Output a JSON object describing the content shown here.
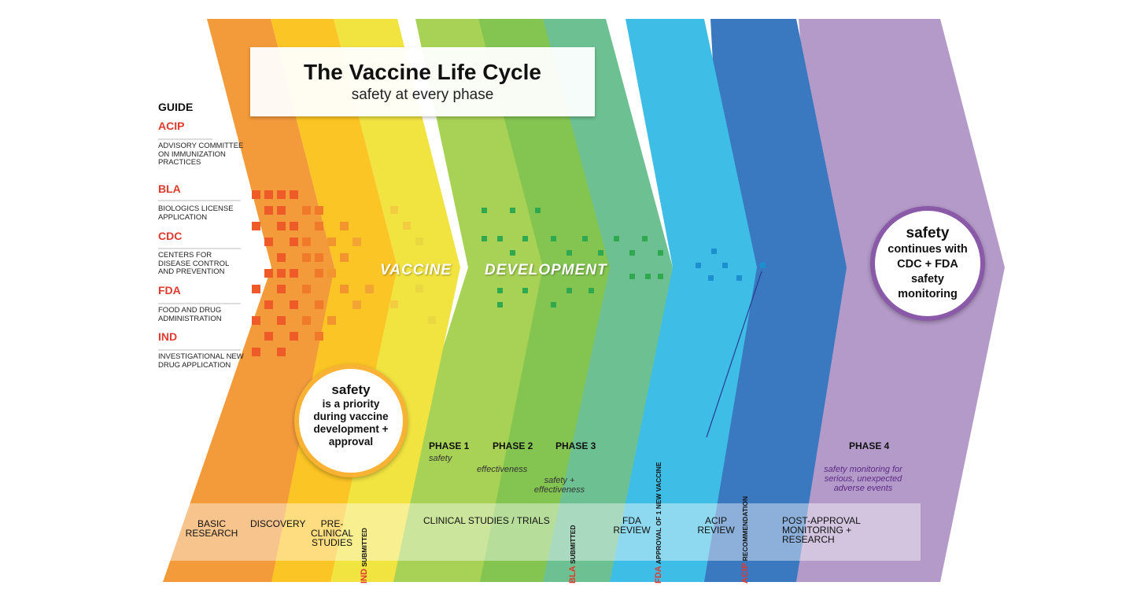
{
  "title": "The Vaccine Life Cycle",
  "subtitle": "safety at every phase",
  "guide": {
    "heading": "GUIDE",
    "items": [
      {
        "abbr": "ACIP",
        "desc": "Advisory Committee on Immunization Practices"
      },
      {
        "abbr": "BLA",
        "desc": "Biologics License Application"
      },
      {
        "abbr": "CDC",
        "desc": "Centers for Disease Control and Prevention"
      },
      {
        "abbr": "FDA",
        "desc": "Food and Drug Administration"
      },
      {
        "abbr": "IND",
        "desc": "Investigational New Drug Application"
      }
    ]
  },
  "banner": {
    "word1": "VACCINE",
    "word2": "DEVELOPMENT"
  },
  "circle_left": {
    "line1": "safety",
    "line2": "is a priority during vaccine development + approval"
  },
  "circle_right": {
    "line1": "safety",
    "line2": "continues with CDC + FDA safety monitoring"
  },
  "phases": [
    {
      "label": "PHASE 1",
      "sub": "safety"
    },
    {
      "label": "PHASE 2",
      "sub": "effectiveness"
    },
    {
      "label": "PHASE 3",
      "sub": "safety + effectiveness"
    },
    {
      "label": "PHASE 4",
      "sub": "safety monitoring for serious, unexpected adverse events"
    }
  ],
  "stages": {
    "basic_research": "BASIC RESEARCH",
    "discovery": "DISCOVERY",
    "preclinical": "PRE-CLINICAL STUDIES",
    "clinical": "CLINICAL STUDIES / TRIALS",
    "fda_review": "FDA REVIEW",
    "acip_review": "ACIP REVIEW",
    "post_approval": "POST-APPROVAL MONITORING + RESEARCH"
  },
  "milestones": {
    "ind": {
      "abbr": "IND",
      "text": "SUBMITTED"
    },
    "bla": {
      "abbr": "BLA",
      "text": "SUBMITTED"
    },
    "fda": {
      "abbr": "FDA",
      "text": "APPROVAL OF 1 NEW VACCINE"
    },
    "acip": {
      "abbr": "ACIP",
      "text": "RECOMMENDATION"
    }
  },
  "colors": {
    "orange": "#f39a3b",
    "orange_yellow": "#fbc525",
    "yellow": "#f1e340",
    "lime": "#a8d255",
    "green": "#84c552",
    "teal": "#6cc091",
    "sky": "#3ebee6",
    "blue": "#3a78c0",
    "purple": "#b49ac9",
    "red": "#e03a2f"
  }
}
